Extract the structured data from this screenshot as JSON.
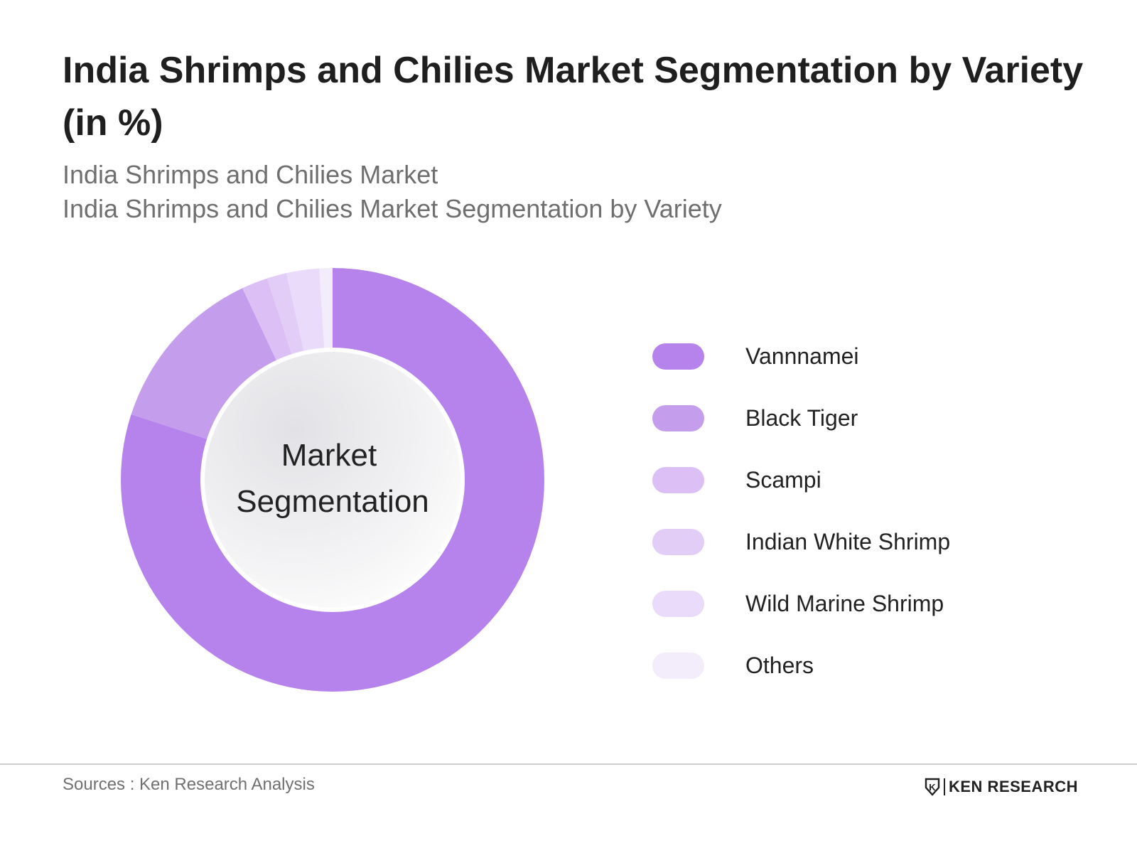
{
  "title": "India Shrimps and Chilies Market Segmentation by Variety (in %)",
  "subtitles": [
    "India Shrimps and Chilies Market",
    "India Shrimps and Chilies Market Segmentation by Variety"
  ],
  "chart_data": {
    "type": "pie",
    "variant": "donut",
    "center_label": [
      "Market",
      "Segmentation"
    ],
    "categories": [
      "Vannnamei",
      "Black Tiger",
      "Scampi",
      "Indian White Shrimp",
      "Wild Marine Shrimp",
      "Others"
    ],
    "values": [
      80,
      13,
      2,
      1.5,
      2.5,
      1
    ],
    "colors": [
      "#b583eb",
      "#c59ded",
      "#dbbff5",
      "#e2cdf6",
      "#e9dbf9",
      "#f3ecfb"
    ],
    "legend_position": "right"
  },
  "footer": {
    "source": "Sources : Ken Research Analysis",
    "brand": "KEN RESEARCH",
    "brand_mark": "K"
  }
}
